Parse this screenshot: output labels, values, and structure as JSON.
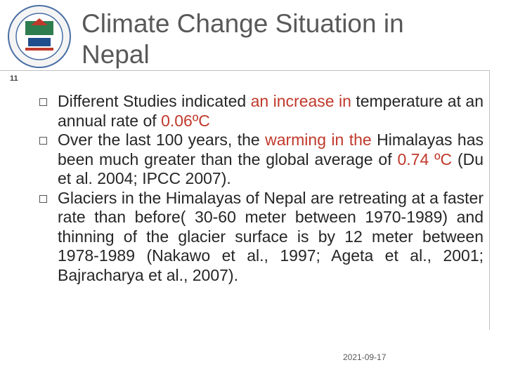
{
  "slide_number": "11",
  "title": "Climate Change Situation in Nepal",
  "bullets": [
    {
      "runs": [
        {
          "text": "Different Studies indicated ",
          "color": "#262626"
        },
        {
          "text": "an increase in",
          "color": "#c0392b"
        },
        {
          "text": " temperature at an annual rate of ",
          "color": "#262626"
        },
        {
          "text": "0.06ºC",
          "color": "#c0392b"
        }
      ]
    },
    {
      "runs": [
        {
          "text": "Over the last 100 years, the ",
          "color": "#262626"
        },
        {
          "text": "warming in the",
          "color": "#c0392b"
        },
        {
          "text": " Himalayas has been much greater than the global average of ",
          "color": "#262626"
        },
        {
          "text": "0.74 ºC",
          "color": "#c0392b"
        },
        {
          "text": " (Du et al. 2004; IPCC 2007).",
          "color": "#262626"
        }
      ]
    },
    {
      "runs": [
        {
          "text": "Glaciers in the Himalayas of Nepal are retreating at a faster rate than before( 30-60 meter between 1970-1989) and thinning of the glacier surface is by 12 meter between 1978-1989 (Nakawo et al., 1997;  Ageta et al., 2001; Bajracharya et al., 2007).",
          "color": "#262626"
        }
      ]
    }
  ],
  "date": "2021-09-17"
}
